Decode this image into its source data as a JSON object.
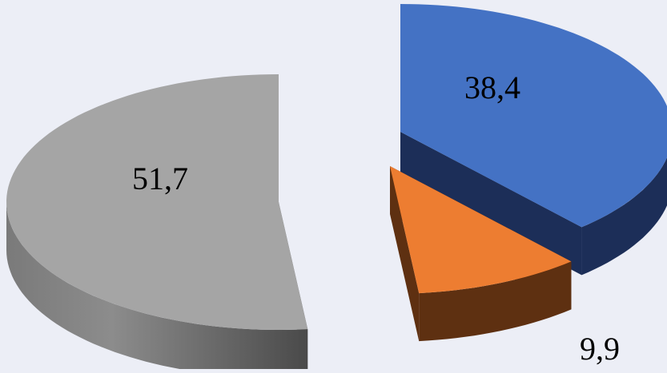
{
  "chart_data": {
    "type": "pie",
    "style": "3d-exploded",
    "legend": "none",
    "slices": [
      {
        "value": 38.4,
        "label": "38,4",
        "color": "#4472c4",
        "side_color": "#1c2e58"
      },
      {
        "value": 9.9,
        "label": "9,9",
        "color": "#ed7d31",
        "side_color": "#5e3011"
      },
      {
        "value": 51.7,
        "label": "51,7",
        "color": "#a5a5a5",
        "side_color": "#5f5f5f"
      }
    ]
  },
  "colors": {
    "background": "#eceef6"
  }
}
